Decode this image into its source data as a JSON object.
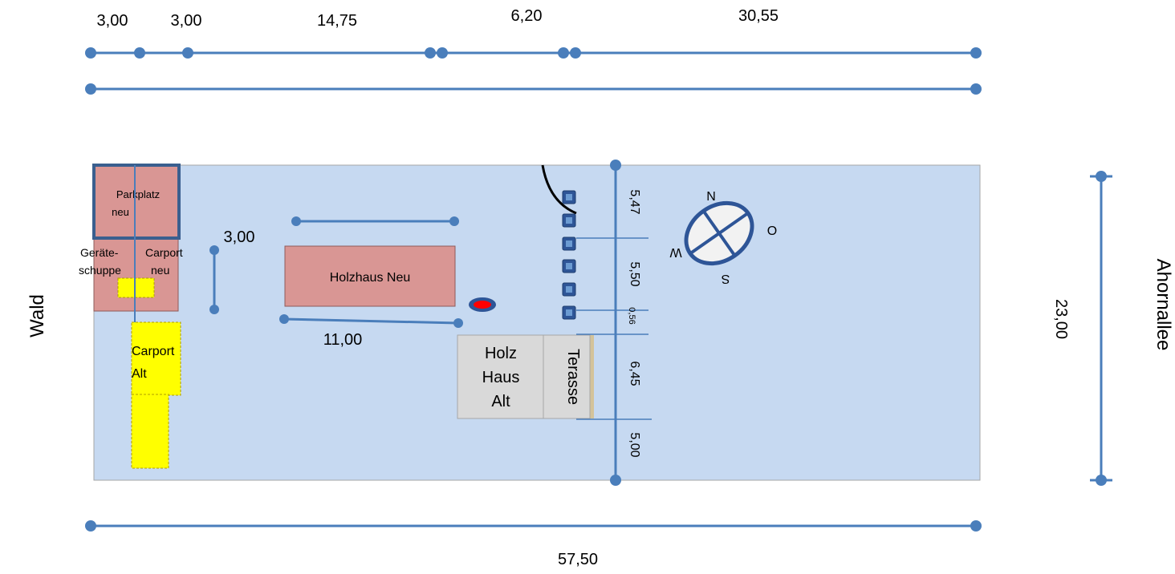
{
  "colors": {
    "plot": "#c6d9f1",
    "plot_border": "#a6a6a6",
    "building_red": "#d99694",
    "building_grey": "#d9d9d9",
    "carport_yellow": "#ffff00",
    "dimension_blue": "#4a7ebb",
    "post_blue": "#2e5597",
    "marker_red": "#ff0000"
  },
  "top_dimensions": {
    "segments": [
      "3,00",
      "3,00",
      "14,75",
      "6,20",
      "30,55"
    ]
  },
  "bottom_dimension": "57,50",
  "right_dimension": "23,00",
  "side_labels": {
    "left": "Wald",
    "right": "Ahornallee"
  },
  "buildings": {
    "parkplatz": "Parkplatz neu",
    "geraeteschuppen": "Geräte-schuppe",
    "carport_neu": "Carport neu",
    "carport_alt": "Carport Alt",
    "holzhaus_neu": "Holzhaus Neu",
    "holzhaus_alt": "Holz Haus Alt",
    "terrasse": "Terasse"
  },
  "inner_dimensions": {
    "holzhaus_width": "11,00",
    "gap_width": "3,00",
    "vertical": [
      "5,47",
      "5,50",
      "0,56",
      "6,45",
      "5,00"
    ]
  },
  "compass": {
    "n": "N",
    "o": "O",
    "s": "S",
    "w": "W"
  }
}
